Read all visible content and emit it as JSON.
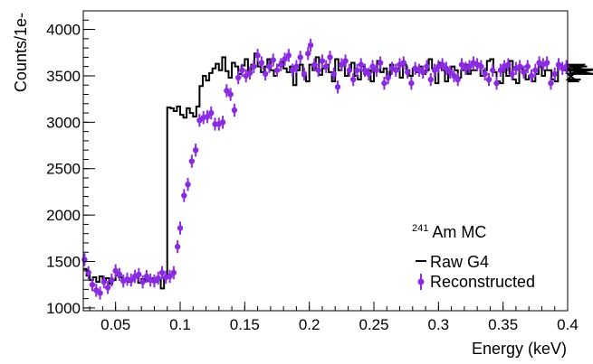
{
  "chart_data": {
    "type": "line",
    "xlabel": "Energy (keV)",
    "ylabel": "Counts/1e-",
    "xlim": [
      0.025,
      0.4
    ],
    "ylim": [
      970,
      4200
    ],
    "x_ticks": [
      0.05,
      0.1,
      0.15,
      0.2,
      0.25,
      0.3,
      0.35,
      0.4
    ],
    "x_tick_labels": [
      "0.05",
      "0.1",
      "0.15",
      "0.2",
      "0.25",
      "0.3",
      "0.35",
      "0.4"
    ],
    "y_ticks": [
      1000,
      1500,
      2000,
      2500,
      3000,
      3500,
      4000
    ],
    "y_tick_labels": [
      "1000",
      "1500",
      "2000",
      "2500",
      "3000",
      "3500",
      "4000"
    ],
    "grid": false,
    "legend": {
      "placement": "bottom-right",
      "title_sup": "241",
      "title": "Am MC",
      "entries": [
        "Raw G4",
        "Reconstructed"
      ]
    },
    "colors": {
      "raw": "#000000",
      "reconstructed": "#8a2be2"
    },
    "raw_g4": {
      "name": "Raw G4",
      "style": "step",
      "bin_width": 0.0025,
      "x_start": 0.025,
      "values": [
        1420,
        1350,
        1300,
        1330,
        1280,
        1340,
        1300,
        1320,
        1260,
        1300,
        1350,
        1330,
        1290,
        1310,
        1280,
        1300,
        1330,
        1270,
        1310,
        1290,
        1300,
        1320,
        1280,
        1300,
        1210,
        1330,
        3160,
        3150,
        3120,
        3170,
        3080,
        3050,
        3150,
        3100,
        3060,
        3170,
        3390,
        3500,
        3450,
        3530,
        3580,
        3630,
        3560,
        3700,
        3550,
        3480,
        3640,
        3600,
        3520,
        3610,
        3680,
        3550,
        3620,
        3740,
        3600,
        3540,
        3600,
        3680,
        3560,
        3500,
        3610,
        3650,
        3580,
        3540,
        3600,
        3400,
        3560,
        3620,
        3500,
        3440,
        3620,
        3560,
        3700,
        3510,
        3580,
        3620,
        3540,
        3440,
        3680,
        3560,
        3620,
        3500,
        3560,
        3640,
        3500,
        3460,
        3600,
        3520,
        3560,
        3440,
        3580,
        3660,
        3540,
        3580,
        3490,
        3620,
        3560,
        3580,
        3480,
        3620,
        3560,
        3500,
        3580,
        3540,
        3600,
        3520,
        3560,
        3680,
        3580,
        3420,
        3640,
        3560,
        3440,
        3560,
        3600,
        3560,
        3480,
        3560,
        3620,
        3520,
        3560,
        3560,
        3630,
        3500,
        3560,
        3660,
        3680,
        3540,
        3440,
        3420,
        3620,
        3500,
        3660,
        3460,
        3420,
        3580,
        3560,
        3460,
        3500,
        3440,
        3520,
        3600,
        3500,
        3560,
        3560,
        3460,
        3440,
        3620,
        3580,
        3560,
        3620,
        3520,
        3520,
        3440,
        3460,
        3620,
        3600,
        3560,
        3520,
        3570
      ]
    },
    "reconstructed": {
      "name": "Reconstructed",
      "style": "points_with_errors",
      "error": 70,
      "points": [
        [
          0.026,
          1520
        ],
        [
          0.029,
          1380
        ],
        [
          0.032,
          1250
        ],
        [
          0.035,
          1190
        ],
        [
          0.038,
          1160
        ],
        [
          0.041,
          1280
        ],
        [
          0.044,
          1220
        ],
        [
          0.047,
          1300
        ],
        [
          0.05,
          1400
        ],
        [
          0.053,
          1360
        ],
        [
          0.056,
          1290
        ],
        [
          0.059,
          1310
        ],
        [
          0.062,
          1300
        ],
        [
          0.065,
          1340
        ],
        [
          0.068,
          1360
        ],
        [
          0.071,
          1280
        ],
        [
          0.074,
          1340
        ],
        [
          0.077,
          1300
        ],
        [
          0.08,
          1290
        ],
        [
          0.083,
          1320
        ],
        [
          0.086,
          1380
        ],
        [
          0.089,
          1330
        ],
        [
          0.092,
          1340
        ],
        [
          0.095,
          1380
        ],
        [
          0.098,
          1660
        ],
        [
          0.1,
          1860
        ],
        [
          0.103,
          2210
        ],
        [
          0.106,
          2330
        ],
        [
          0.109,
          2580
        ],
        [
          0.112,
          2700
        ],
        [
          0.115,
          3020
        ],
        [
          0.118,
          3050
        ],
        [
          0.121,
          3060
        ],
        [
          0.124,
          3100
        ],
        [
          0.127,
          2980
        ],
        [
          0.13,
          2980
        ],
        [
          0.133,
          3000
        ],
        [
          0.136,
          3340
        ],
        [
          0.139,
          3300
        ],
        [
          0.142,
          3130
        ],
        [
          0.145,
          3480
        ],
        [
          0.148,
          3560
        ],
        [
          0.151,
          3500
        ],
        [
          0.154,
          3530
        ],
        [
          0.157,
          3600
        ],
        [
          0.16,
          3720
        ],
        [
          0.163,
          3640
        ],
        [
          0.166,
          3520
        ],
        [
          0.169,
          3600
        ],
        [
          0.172,
          3670
        ],
        [
          0.175,
          3560
        ],
        [
          0.178,
          3620
        ],
        [
          0.181,
          3680
        ],
        [
          0.184,
          3720
        ],
        [
          0.187,
          3560
        ],
        [
          0.19,
          3600
        ],
        [
          0.193,
          3700
        ],
        [
          0.196,
          3520
        ],
        [
          0.199,
          3740
        ],
        [
          0.201,
          3830
        ],
        [
          0.204,
          3620
        ],
        [
          0.207,
          3560
        ],
        [
          0.21,
          3660
        ],
        [
          0.213,
          3600
        ],
        [
          0.216,
          3700
        ],
        [
          0.219,
          3520
        ],
        [
          0.222,
          3380
        ],
        [
          0.225,
          3620
        ],
        [
          0.228,
          3660
        ],
        [
          0.231,
          3560
        ],
        [
          0.234,
          3460
        ],
        [
          0.237,
          3560
        ],
        [
          0.24,
          3620
        ],
        [
          0.243,
          3560
        ],
        [
          0.246,
          3520
        ],
        [
          0.249,
          3600
        ],
        [
          0.252,
          3560
        ],
        [
          0.255,
          3640
        ],
        [
          0.258,
          3420
        ],
        [
          0.261,
          3480
        ],
        [
          0.264,
          3580
        ],
        [
          0.267,
          3560
        ],
        [
          0.27,
          3620
        ],
        [
          0.273,
          3640
        ],
        [
          0.276,
          3540
        ],
        [
          0.279,
          3420
        ],
        [
          0.282,
          3580
        ],
        [
          0.285,
          3560
        ],
        [
          0.288,
          3540
        ],
        [
          0.291,
          3600
        ],
        [
          0.294,
          3460
        ],
        [
          0.297,
          3560
        ],
        [
          0.3,
          3600
        ],
        [
          0.303,
          3620
        ],
        [
          0.306,
          3580
        ],
        [
          0.309,
          3540
        ],
        [
          0.312,
          3500
        ],
        [
          0.315,
          3460
        ],
        [
          0.318,
          3620
        ],
        [
          0.321,
          3580
        ],
        [
          0.324,
          3600
        ],
        [
          0.327,
          3640
        ],
        [
          0.33,
          3620
        ],
        [
          0.333,
          3600
        ],
        [
          0.336,
          3520
        ],
        [
          0.339,
          3460
        ],
        [
          0.342,
          3560
        ],
        [
          0.345,
          3420
        ],
        [
          0.348,
          3560
        ],
        [
          0.351,
          3600
        ],
        [
          0.354,
          3620
        ],
        [
          0.357,
          3520
        ],
        [
          0.36,
          3580
        ],
        [
          0.363,
          3600
        ],
        [
          0.366,
          3540
        ],
        [
          0.369,
          3600
        ],
        [
          0.372,
          3500
        ],
        [
          0.375,
          3560
        ],
        [
          0.378,
          3640
        ],
        [
          0.381,
          3620
        ],
        [
          0.384,
          3640
        ],
        [
          0.387,
          3420
        ],
        [
          0.39,
          3520
        ],
        [
          0.393,
          3620
        ],
        [
          0.396,
          3580
        ],
        [
          0.399,
          3600
        ]
      ]
    }
  }
}
